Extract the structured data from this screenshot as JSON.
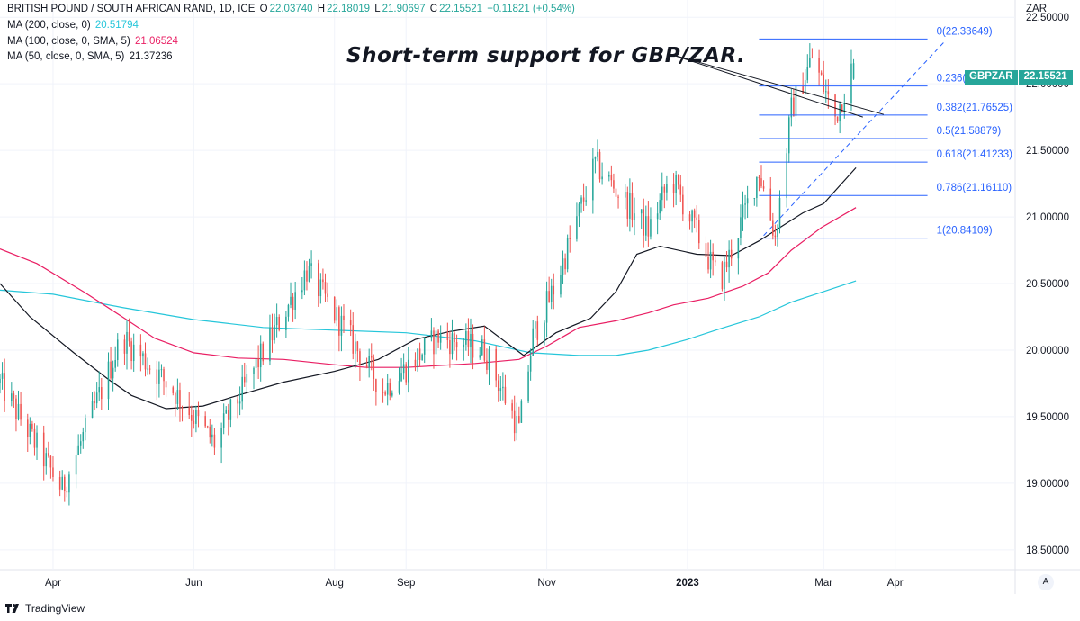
{
  "header": {
    "title": "BRITISH POUND / SOUTH AFRICAN RAND, 1D, ICE",
    "ohlc": [
      {
        "label": "O",
        "value": "22.03740"
      },
      {
        "label": "H",
        "value": "22.18019"
      },
      {
        "label": "L",
        "value": "21.90697"
      },
      {
        "label": "C",
        "value": "22.15521"
      }
    ],
    "change": "+0.11821 (+0.54%)",
    "ma200_label": "MA (200, close, 0)",
    "ma200_value": "20.51794",
    "ma100_label": "MA (100, close, 0, SMA, 5)",
    "ma100_value": "21.06524",
    "ma50_label": "MA (50, close, 0, SMA, 5)",
    "ma50_value": "21.37236"
  },
  "annotation": "Short-term support for GBP/ZAR.",
  "price_badge": {
    "symbol": "GBPZAR",
    "value": "22.15521"
  },
  "axis_unit": "ZAR",
  "auto_button": "A",
  "footer": {
    "brand": "TradingView"
  },
  "colors": {
    "up": "#26a69a",
    "down": "#ef5350",
    "ma200": "#26c6da",
    "ma100": "#e91e63",
    "ma50": "#131722",
    "fib": "#2962ff"
  },
  "chart_data": {
    "type": "candlestick",
    "symbol": "GBPZAR",
    "y_ticks": [
      "22.50000",
      "22.00000",
      "21.50000",
      "21.00000",
      "20.50000",
      "20.00000",
      "19.50000",
      "19.00000",
      "18.50000"
    ],
    "ylim": [
      18.35,
      22.63
    ],
    "x_ticks": [
      {
        "date": "2022-04-01",
        "label": "Apr"
      },
      {
        "date": "2022-06-01",
        "label": "Jun"
      },
      {
        "date": "2022-08-01",
        "label": "Aug"
      },
      {
        "date": "2022-09-01",
        "label": "Sep"
      },
      {
        "date": "2022-11-01",
        "label": "Nov"
      },
      {
        "date": "2023-01-01",
        "label": "2023"
      },
      {
        "date": "2023-03-01",
        "label": "Mar"
      },
      {
        "date": "2023-04-01",
        "label": "Apr"
      }
    ],
    "xlim": [
      "2022-03-09",
      "2023-05-23"
    ],
    "fibonacci": [
      {
        "ratio": "0",
        "level": 22.33649,
        "label": "0(22.33649)"
      },
      {
        "ratio": "0.236",
        "level": 21.98358,
        "label": "0.236(21.98358)"
      },
      {
        "ratio": "0.382",
        "level": 21.76525,
        "label": "0.382(21.76525)"
      },
      {
        "ratio": "0.5",
        "level": 21.58879,
        "label": "0.5(21.58879)"
      },
      {
        "ratio": "0.618",
        "level": 21.41233,
        "label": "0.618(21.41233)"
      },
      {
        "ratio": "0.786",
        "level": 21.1611,
        "label": "0.786(21.16110)"
      },
      {
        "ratio": "1",
        "level": 20.84109,
        "label": "1(20.84109)"
      }
    ],
    "fib_range": {
      "start": "2023-02-01",
      "end": "2023-04-15"
    },
    "trendlines": [
      {
        "style": "solid",
        "start": {
          "date": "2022-12-25",
          "value": 22.22
        },
        "end": {
          "date": "2023-03-27",
          "value": 21.77
        }
      },
      {
        "style": "solid",
        "start": {
          "date": "2022-12-25",
          "value": 22.22
        },
        "end": {
          "date": "2023-03-18",
          "value": 21.75
        }
      },
      {
        "style": "dashed",
        "start": {
          "date": "2023-02-03",
          "value": 20.86
        },
        "end": {
          "date": "2023-04-22",
          "value": 22.31
        }
      }
    ],
    "moving_averages": [
      {
        "name": "MA (200, close, 0)",
        "color": "#26c6da",
        "points": [
          [
            "2022-03-09",
            20.45
          ],
          [
            "2022-04-01",
            20.42
          ],
          [
            "2022-05-01",
            20.32
          ],
          [
            "2022-06-01",
            20.23
          ],
          [
            "2022-07-01",
            20.17
          ],
          [
            "2022-08-01",
            20.15
          ],
          [
            "2022-09-01",
            20.13
          ],
          [
            "2022-10-01",
            20.07
          ],
          [
            "2022-10-25",
            19.98
          ],
          [
            "2022-11-15",
            19.96
          ],
          [
            "2022-12-01",
            19.96
          ],
          [
            "2022-12-15",
            20.0
          ],
          [
            "2023-01-01",
            20.08
          ],
          [
            "2023-01-15",
            20.16
          ],
          [
            "2023-02-01",
            20.25
          ],
          [
            "2023-02-15",
            20.36
          ],
          [
            "2023-03-01",
            20.44
          ],
          [
            "2023-03-15",
            20.52
          ]
        ]
      },
      {
        "name": "MA (100, close, 0, SMA, 5)",
        "color": "#e91e63",
        "points": [
          [
            "2022-03-09",
            20.76
          ],
          [
            "2022-03-25",
            20.65
          ],
          [
            "2022-04-15",
            20.43
          ],
          [
            "2022-05-01",
            20.25
          ],
          [
            "2022-05-15",
            20.09
          ],
          [
            "2022-06-01",
            19.98
          ],
          [
            "2022-06-20",
            19.94
          ],
          [
            "2022-07-10",
            19.93
          ],
          [
            "2022-08-01",
            19.89
          ],
          [
            "2022-08-15",
            19.87
          ],
          [
            "2022-09-01",
            19.87
          ],
          [
            "2022-10-01",
            19.9
          ],
          [
            "2022-10-20",
            19.93
          ],
          [
            "2022-11-01",
            20.03
          ],
          [
            "2022-11-15",
            20.17
          ],
          [
            "2022-12-01",
            20.22
          ],
          [
            "2022-12-15",
            20.28
          ],
          [
            "2022-12-26",
            20.34
          ],
          [
            "2023-01-10",
            20.39
          ],
          [
            "2023-01-25",
            20.48
          ],
          [
            "2023-02-05",
            20.58
          ],
          [
            "2023-02-15",
            20.75
          ],
          [
            "2023-02-28",
            20.92
          ],
          [
            "2023-03-15",
            21.07
          ]
        ]
      },
      {
        "name": "MA (50, close, 0, SMA, 5)",
        "color": "#131722",
        "points": [
          [
            "2022-03-09",
            20.5
          ],
          [
            "2022-03-22",
            20.25
          ],
          [
            "2022-04-10",
            19.98
          ],
          [
            "2022-04-25",
            19.78
          ],
          [
            "2022-05-05",
            19.66
          ],
          [
            "2022-05-20",
            19.56
          ],
          [
            "2022-06-05",
            19.58
          ],
          [
            "2022-06-20",
            19.66
          ],
          [
            "2022-07-10",
            19.76
          ],
          [
            "2022-08-01",
            19.84
          ],
          [
            "2022-08-20",
            19.93
          ],
          [
            "2022-09-05",
            20.08
          ],
          [
            "2022-09-20",
            20.14
          ],
          [
            "2022-10-05",
            20.18
          ],
          [
            "2022-10-15",
            20.05
          ],
          [
            "2022-10-22",
            19.96
          ],
          [
            "2022-11-05",
            20.13
          ],
          [
            "2022-11-20",
            20.24
          ],
          [
            "2022-12-01",
            20.44
          ],
          [
            "2022-12-10",
            20.72
          ],
          [
            "2022-12-20",
            20.78
          ],
          [
            "2023-01-05",
            20.72
          ],
          [
            "2023-01-20",
            20.71
          ],
          [
            "2023-02-01",
            20.82
          ],
          [
            "2023-02-10",
            20.92
          ],
          [
            "2023-02-20",
            21.03
          ],
          [
            "2023-03-01",
            21.1
          ],
          [
            "2023-03-15",
            21.37
          ]
        ]
      }
    ],
    "key_points": [
      {
        "date": "2022-03-09",
        "value": 19.75
      },
      {
        "date": "2022-04-05",
        "value": 18.95
      },
      {
        "date": "2022-05-01",
        "value": 20.1
      },
      {
        "date": "2022-05-23",
        "value": 19.7
      },
      {
        "date": "2022-06-10",
        "value": 19.3
      },
      {
        "date": "2022-07-20",
        "value": 20.6
      },
      {
        "date": "2022-08-22",
        "value": 19.7
      },
      {
        "date": "2022-09-15",
        "value": 20.1
      },
      {
        "date": "2022-10-05",
        "value": 20.0
      },
      {
        "date": "2022-10-20",
        "value": 19.4
      },
      {
        "date": "2022-10-26",
        "value": 20.1
      },
      {
        "date": "2022-11-05",
        "value": 20.5
      },
      {
        "date": "2022-11-22",
        "value": 21.4
      },
      {
        "date": "2022-12-15",
        "value": 20.9
      },
      {
        "date": "2022-12-25",
        "value": 21.3
      },
      {
        "date": "2023-01-15",
        "value": 20.5
      },
      {
        "date": "2023-02-01",
        "value": 21.35
      },
      {
        "date": "2023-02-08",
        "value": 20.85
      },
      {
        "date": "2023-02-15",
        "value": 21.8
      },
      {
        "date": "2023-02-24",
        "value": 22.2
      },
      {
        "date": "2023-03-06",
        "value": 21.75
      },
      {
        "date": "2023-03-14",
        "value": 22.15
      }
    ],
    "last_close": 22.15521
  }
}
